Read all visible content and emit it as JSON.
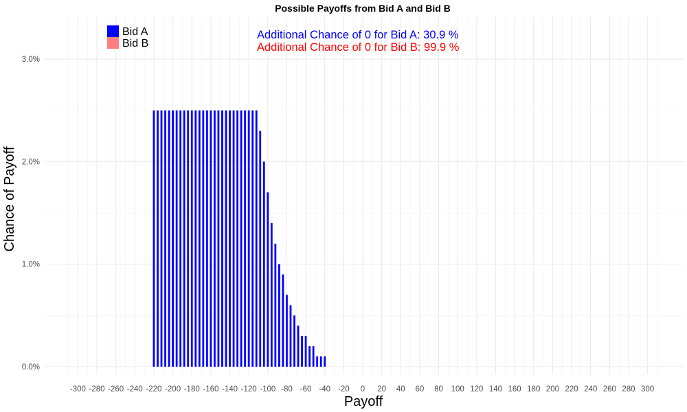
{
  "chart_data": {
    "type": "bar",
    "title": "Possible Payoffs from Bid A and Bid B",
    "xlabel": "Payoff",
    "ylabel": "Chance of Payoff",
    "xlim": [
      -310,
      310
    ],
    "ylim": [
      0,
      3.2
    ],
    "x_ticks": [
      -300,
      -280,
      -260,
      -240,
      -220,
      -200,
      -180,
      -160,
      -140,
      -120,
      -100,
      -80,
      -60,
      -40,
      -20,
      0,
      20,
      40,
      60,
      80,
      100,
      120,
      140,
      160,
      180,
      200,
      220,
      240,
      260,
      280,
      300
    ],
    "y_ticks": [
      0,
      1,
      2,
      3
    ],
    "y_tick_labels": [
      "0.0%",
      "1.0%",
      "2.0%",
      "3.0%"
    ],
    "grid": true,
    "legend_position": "top-left",
    "series": [
      {
        "name": "Bid A",
        "color": "#0000ff",
        "x": [
          -220,
          -216,
          -212,
          -208,
          -204,
          -200,
          -196,
          -192,
          -188,
          -184,
          -180,
          -176,
          -172,
          -168,
          -164,
          -160,
          -156,
          -152,
          -148,
          -144,
          -140,
          -136,
          -132,
          -128,
          -124,
          -120,
          -116,
          -112,
          -108,
          -104,
          -100,
          -96,
          -92,
          -88,
          -84,
          -80,
          -76,
          -72,
          -68,
          -64,
          -60,
          -56,
          -52,
          -48,
          -44,
          -40,
          -36,
          -32,
          -28,
          -24
        ],
        "values": [
          2.5,
          2.5,
          2.5,
          2.5,
          2.5,
          2.5,
          2.5,
          2.5,
          2.5,
          2.5,
          2.5,
          2.5,
          2.5,
          2.5,
          2.5,
          2.5,
          2.5,
          2.5,
          2.5,
          2.5,
          2.5,
          2.5,
          2.5,
          2.5,
          2.5,
          2.5,
          2.5,
          2.5,
          2.3,
          2.0,
          1.7,
          1.4,
          1.2,
          1.0,
          0.9,
          0.7,
          0.6,
          0.5,
          0.4,
          0.3,
          0.3,
          0.2,
          0.2,
          0.1,
          0.1,
          0.1,
          0,
          0,
          0,
          0
        ]
      },
      {
        "name": "Bid B",
        "color": "#ff7f7f",
        "x": [],
        "values": []
      }
    ],
    "annotations": [
      {
        "text": "Additional Chance of 0 for Bid A:  30.9 %",
        "color": "#0000ff"
      },
      {
        "text": "Additional Chance of 0 for Bid B:  99.9 %",
        "color": "#ff0000"
      }
    ]
  }
}
